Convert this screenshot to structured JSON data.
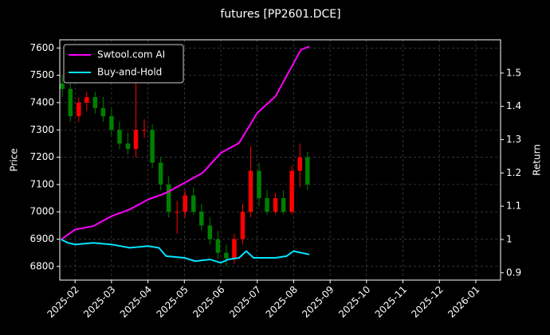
{
  "chart_data": {
    "type": "candlestick",
    "title": "futures [PP2601.DCE]",
    "ylabel": "Price",
    "y2label": "Return",
    "x": [
      0.65,
      0.87,
      1.1,
      1.32,
      1.55,
      1.77,
      2.0,
      2.22,
      2.45,
      2.67,
      2.9,
      3.12,
      3.35,
      3.57,
      3.8,
      4.02,
      4.25,
      4.47,
      4.7,
      4.92,
      5.15,
      5.37,
      5.6,
      5.82,
      6.05,
      6.27,
      6.5,
      6.72,
      6.95,
      7.17,
      7.38
    ],
    "open": [
      7470,
      7450,
      7350,
      7400,
      7420,
      7380,
      7350,
      7300,
      7250,
      7230,
      7300,
      7300,
      7180,
      7100,
      7000,
      7000,
      7060,
      7000,
      6950,
      6900,
      6850,
      6830,
      6900,
      7000,
      7150,
      7050,
      7000,
      7050,
      7000,
      7150,
      7200
    ],
    "high": [
      7500,
      7470,
      7420,
      7440,
      7440,
      7420,
      7380,
      7330,
      7290,
      7500,
      7340,
      7320,
      7200,
      7130,
      7040,
      7080,
      7090,
      7030,
      6980,
      6930,
      6880,
      6920,
      7030,
      7240,
      7180,
      7080,
      7070,
      7080,
      7170,
      7250,
      7220
    ],
    "low": [
      7420,
      7330,
      7330,
      7370,
      7360,
      7330,
      7280,
      7230,
      7210,
      7200,
      7270,
      7160,
      7080,
      6980,
      6920,
      6980,
      6990,
      6930,
      6880,
      6830,
      6800,
      6810,
      6880,
      6980,
      7020,
      6990,
      6990,
      6990,
      6990,
      7090,
      7080
    ],
    "close": [
      7450,
      7350,
      7400,
      7420,
      7380,
      7350,
      7300,
      7250,
      7230,
      7300,
      7300,
      7180,
      7100,
      7000,
      7000,
      7060,
      7000,
      6950,
      6900,
      6850,
      6830,
      6900,
      7000,
      7150,
      7050,
      7000,
      7050,
      7000,
      7150,
      7200,
      7100
    ],
    "up_color": "#ff0000",
    "down_color": "#008000",
    "series": [
      {
        "name": "Swtool.com AI",
        "color": "#ff00ff",
        "axis": "y2",
        "x": [
          0.62,
          1.0,
          1.5,
          2.0,
          2.5,
          3.0,
          3.5,
          4.0,
          4.5,
          5.0,
          5.5,
          6.0,
          6.5,
          7.0,
          7.2,
          7.43
        ],
        "values": [
          1.0,
          1.03,
          1.04,
          1.07,
          1.09,
          1.12,
          1.14,
          1.17,
          1.2,
          1.26,
          1.29,
          1.38,
          1.43,
          1.53,
          1.57,
          1.58
        ]
      },
      {
        "name": "Buy-and-Hold",
        "color": "#00e5ff",
        "axis": "y2",
        "x": [
          0.62,
          0.8,
          1.0,
          1.5,
          2.0,
          2.5,
          3.0,
          3.3,
          3.5,
          4.0,
          4.3,
          4.7,
          5.0,
          5.2,
          5.5,
          5.7,
          5.9,
          6.5,
          6.8,
          7.0,
          7.43
        ],
        "values": [
          1.0,
          0.99,
          0.985,
          0.99,
          0.985,
          0.975,
          0.98,
          0.975,
          0.95,
          0.945,
          0.935,
          0.94,
          0.93,
          0.94,
          0.945,
          0.965,
          0.945,
          0.945,
          0.95,
          0.965,
          0.955
        ]
      }
    ],
    "xlim": [
      0.58,
      12.68
    ],
    "xticks": [
      {
        "value": 1,
        "label": "2025-02"
      },
      {
        "value": 2,
        "label": "2025-03"
      },
      {
        "value": 3,
        "label": "2025-04"
      },
      {
        "value": 4,
        "label": "2025-05"
      },
      {
        "value": 5,
        "label": "2025-06"
      },
      {
        "value": 6,
        "label": "2025-07"
      },
      {
        "value": 7,
        "label": "2025-08"
      },
      {
        "value": 8,
        "label": "2025-09"
      },
      {
        "value": 9,
        "label": "2025-10"
      },
      {
        "value": 10,
        "label": "2025-11"
      },
      {
        "value": 11,
        "label": "2025-12"
      },
      {
        "value": 12,
        "label": "2026-01"
      }
    ],
    "ylim": [
      6750,
      7630
    ],
    "yticks": [
      6800,
      6900,
      7000,
      7100,
      7200,
      7300,
      7400,
      7500,
      7600
    ],
    "y2lim": [
      0.878,
      1.6
    ],
    "y2ticks": [
      0.9,
      1.0,
      1.1,
      1.2,
      1.3,
      1.4,
      1.5
    ],
    "grid": true,
    "legend": "upper left"
  }
}
